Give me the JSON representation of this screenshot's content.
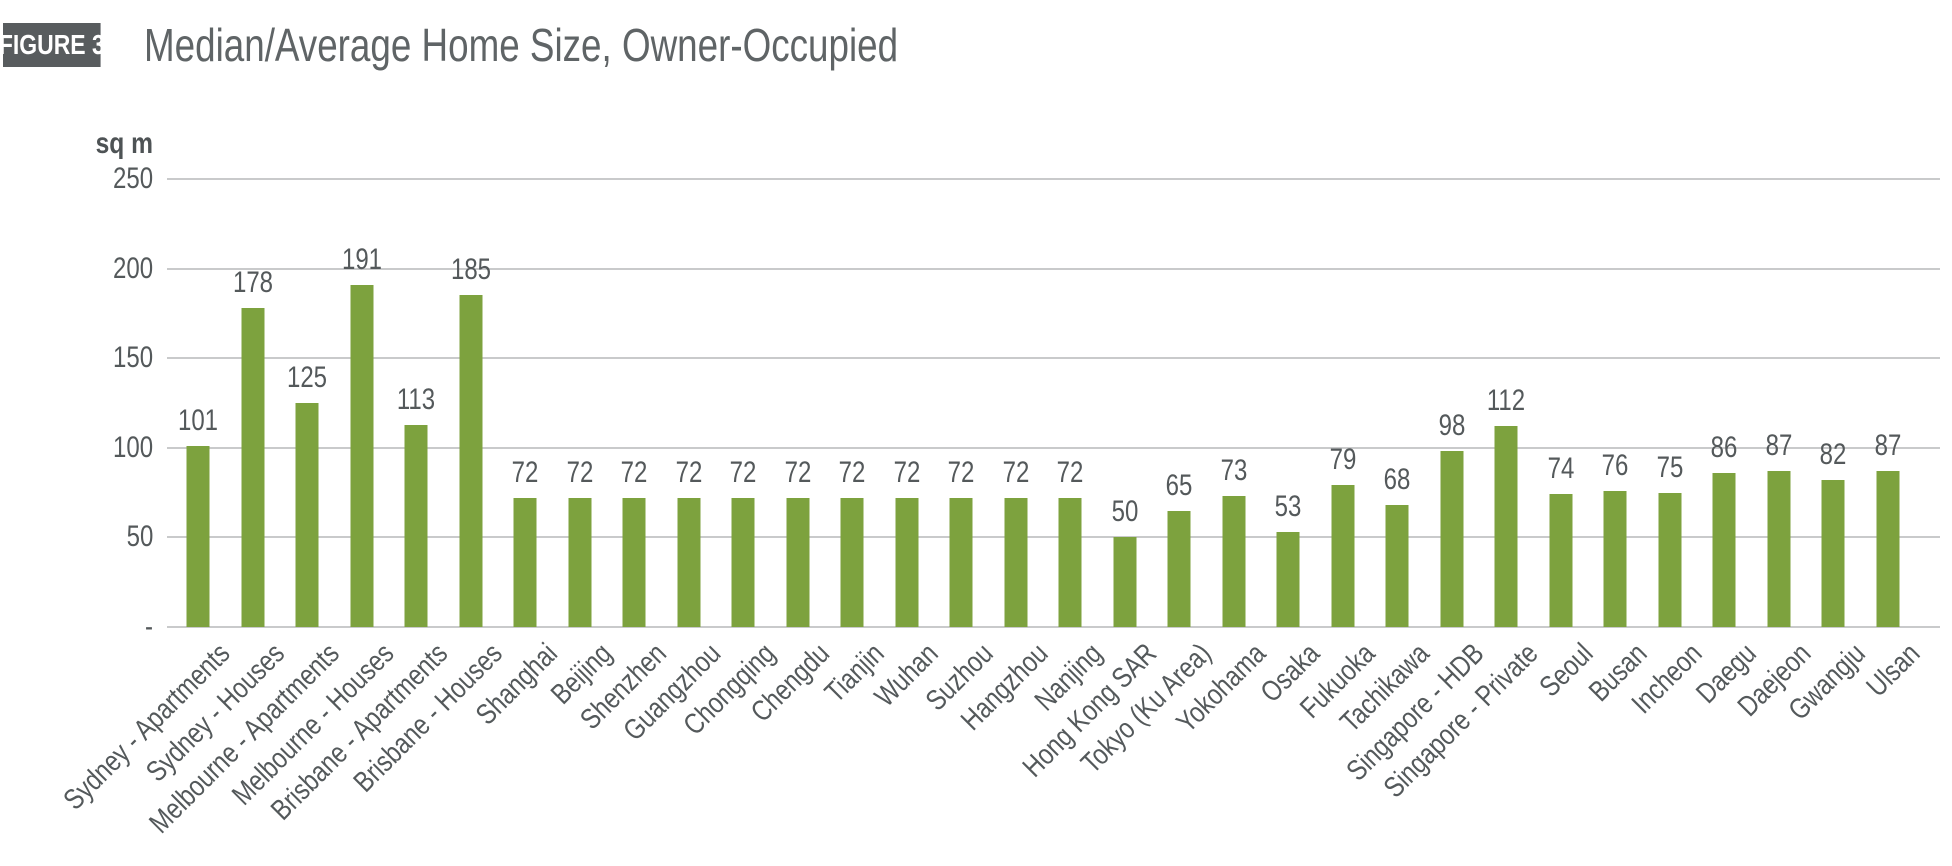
{
  "figure": {
    "badge": "FIGURE 3",
    "title": "Median/Average Home Size, Owner-Occupied"
  },
  "chart_data": {
    "type": "bar",
    "title": "Median/Average Home Size, Owner-Occupied",
    "figure_label": "FIGURE 3",
    "unit_label": "sq m",
    "categories": [
      "Sydney - Apartments",
      "Sydney - Houses",
      "Melbourne - Apartments",
      "Melbourne - Houses",
      "Brisbane - Apartments",
      "Brisbane - Houses",
      "Shanghai",
      "Beijing",
      "Shenzhen",
      "Guangzhou",
      "Chongqing",
      "Chengdu",
      "Tianjin",
      "Wuhan",
      "Suzhou",
      "Hangzhou",
      "Nanjing",
      "Hong Kong SAR",
      "Tokyo (Ku Area)",
      "Yokohama",
      "Osaka",
      "Fukuoka",
      "Tachikawa",
      "Singapore - HDB",
      "Singapore - Private",
      "Seoul",
      "Busan",
      "Incheon",
      "Daegu",
      "Daejeon",
      "Gwangju",
      "Ulsan"
    ],
    "values": [
      101,
      178,
      125,
      191,
      113,
      185,
      72,
      72,
      72,
      72,
      72,
      72,
      72,
      72,
      72,
      72,
      72,
      50,
      65,
      73,
      53,
      79,
      68,
      98,
      112,
      74,
      76,
      75,
      86,
      87,
      82,
      87
    ],
    "ylim": [
      0,
      250
    ],
    "y_ticks": [
      {
        "value": 250,
        "label": "250"
      },
      {
        "value": 200,
        "label": "200"
      },
      {
        "value": 150,
        "label": "150"
      },
      {
        "value": 100,
        "label": "100"
      },
      {
        "value": 50,
        "label": "50"
      },
      {
        "value": 0,
        "label": "-"
      }
    ],
    "grid": true,
    "legend": null,
    "bar_color": "#7da23e",
    "gridline_color": "#c9cacb",
    "label_color": "#54595b"
  }
}
